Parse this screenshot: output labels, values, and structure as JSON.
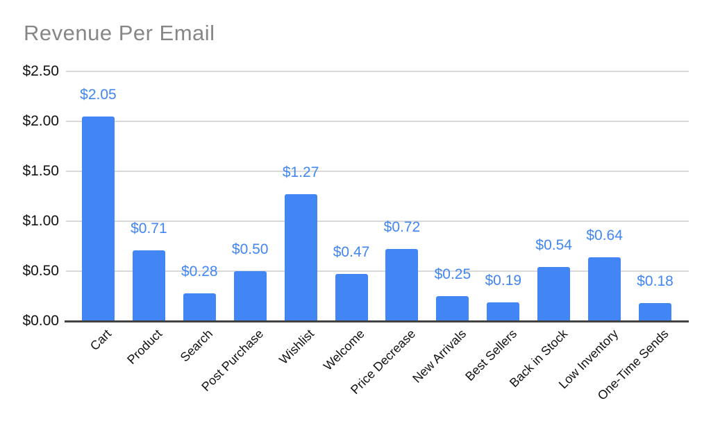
{
  "chart_data": {
    "type": "bar",
    "title": "Revenue Per Email",
    "categories": [
      "Cart",
      "Product",
      "Search",
      "Post Purchase",
      "Wishlist",
      "Welcome",
      "Price Decrease",
      "New Arrivals",
      "Best Sellers",
      "Back in Stock",
      "Low Inventory",
      "One-Time Sends"
    ],
    "values": [
      2.05,
      0.71,
      0.28,
      0.5,
      1.27,
      0.47,
      0.72,
      0.25,
      0.19,
      0.54,
      0.64,
      0.18
    ],
    "value_labels": [
      "$2.05",
      "$0.71",
      "$0.28",
      "$0.50",
      "$1.27",
      "$0.47",
      "$0.72",
      "$0.25",
      "$0.19",
      "$0.54",
      "$0.64",
      "$0.18"
    ],
    "y_ticks": [
      {
        "label": "$0.00",
        "value": 0
      },
      {
        "label": "$0.50",
        "value": 0.5
      },
      {
        "label": "$1.00",
        "value": 1.0
      },
      {
        "label": "$1.50",
        "value": 1.5
      },
      {
        "label": "$2.00",
        "value": 2.0
      },
      {
        "label": "$2.50",
        "value": 2.5
      }
    ],
    "ylim": [
      0,
      2.5
    ],
    "xlabel": "",
    "ylabel": "",
    "legend_position": "none",
    "grid": true,
    "colors": {
      "bar": "#4285F4",
      "value_label": "#4285F4",
      "gridline": "#d9d9d9",
      "axis_line": "#424242",
      "title": "#878787",
      "tick_label": "#111111",
      "background": "#ffffff"
    }
  }
}
